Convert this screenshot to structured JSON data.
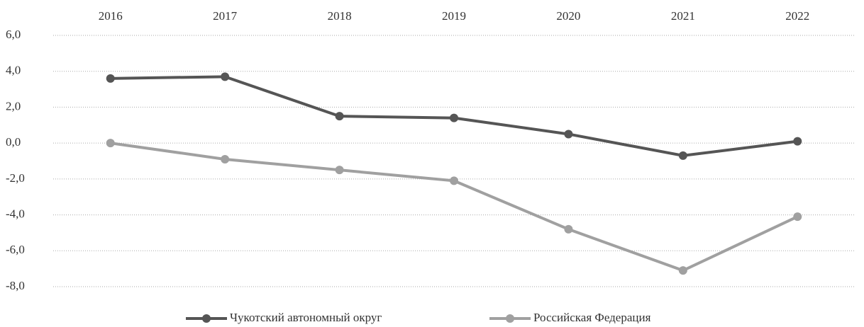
{
  "chart_data": {
    "type": "line",
    "categories": [
      "2016",
      "2017",
      "2018",
      "2019",
      "2020",
      "2021",
      "2022"
    ],
    "series": [
      {
        "name": "Чукотский автономный округ",
        "color": "#555555",
        "values": [
          3.6,
          3.7,
          1.5,
          1.4,
          0.5,
          -0.7,
          0.1
        ]
      },
      {
        "name": "Российская Федерация",
        "color": "#a0a0a0",
        "values": [
          0.0,
          -0.9,
          -1.5,
          -2.1,
          -4.8,
          -7.1,
          -4.1
        ]
      }
    ],
    "ylim": [
      -8,
      6
    ],
    "yticks": [
      {
        "value": 6,
        "label": "6,0"
      },
      {
        "value": 4,
        "label": "4,0"
      },
      {
        "value": 2,
        "label": "2,0"
      },
      {
        "value": 0,
        "label": "0,0"
      },
      {
        "value": -2,
        "label": "-2,0"
      },
      {
        "value": -4,
        "label": "-4,0"
      },
      {
        "value": -6,
        "label": "-6,0"
      },
      {
        "value": -8,
        "label": "-8,0"
      }
    ],
    "grid": true,
    "legend": "bottom"
  }
}
